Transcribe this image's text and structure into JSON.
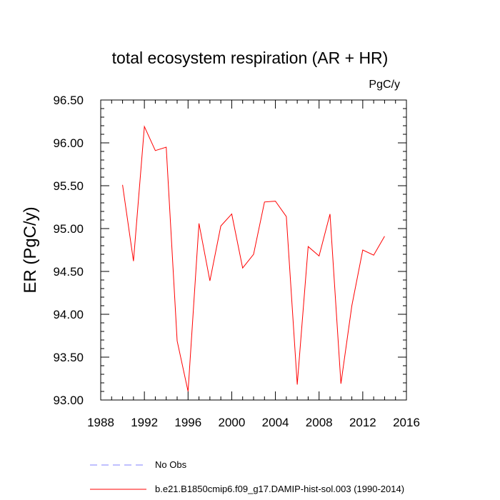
{
  "chart_data": {
    "type": "line",
    "title": "total ecosystem respiration (AR + HR)",
    "units": "PgC/y",
    "ylabel": "ER  (PgC/y)",
    "xlabel": "",
    "xlim": [
      1988,
      2016
    ],
    "ylim": [
      93.0,
      96.5
    ],
    "x_ticks": [
      1988,
      1992,
      1996,
      2000,
      2004,
      2008,
      2012,
      2016
    ],
    "x_tick_labels": [
      "1988",
      "1992",
      "1996",
      "2000",
      "2004",
      "2008",
      "2012",
      "2016"
    ],
    "y_ticks": [
      93.0,
      93.5,
      94.0,
      94.5,
      95.0,
      95.5,
      96.0,
      96.5
    ],
    "y_tick_labels": [
      "93.00",
      "93.50",
      "94.00",
      "94.50",
      "95.00",
      "95.50",
      "96.00",
      "96.50"
    ],
    "grid": false,
    "legend_position": "bottom",
    "series": [
      {
        "name": "b.e21.B1850cmip6.f09_g17.DAMIP-hist-sol.003 (1990-2014)",
        "color": "#ff0000",
        "style": "solid",
        "x": [
          1990,
          1991,
          1992,
          1993,
          1994,
          1995,
          1996,
          1997,
          1998,
          1999,
          2000,
          2001,
          2002,
          2003,
          2004,
          2005,
          2006,
          2007,
          2008,
          2009,
          2010,
          2011,
          2012,
          2013,
          2014
        ],
        "y": [
          95.51,
          94.62,
          96.19,
          95.91,
          95.95,
          93.69,
          93.1,
          95.06,
          94.39,
          95.03,
          95.17,
          94.54,
          94.7,
          95.31,
          95.32,
          95.14,
          93.18,
          94.79,
          94.68,
          95.17,
          93.19,
          94.1,
          94.75,
          94.69,
          94.91
        ]
      }
    ],
    "legend": [
      {
        "label": "No Obs",
        "color": "#8080ff",
        "style": "dashed"
      },
      {
        "label": "b.e21.B1850cmip6.f09_g17.DAMIP-hist-sol.003 (1990-2014)",
        "color": "#ff0000",
        "style": "solid"
      }
    ]
  }
}
